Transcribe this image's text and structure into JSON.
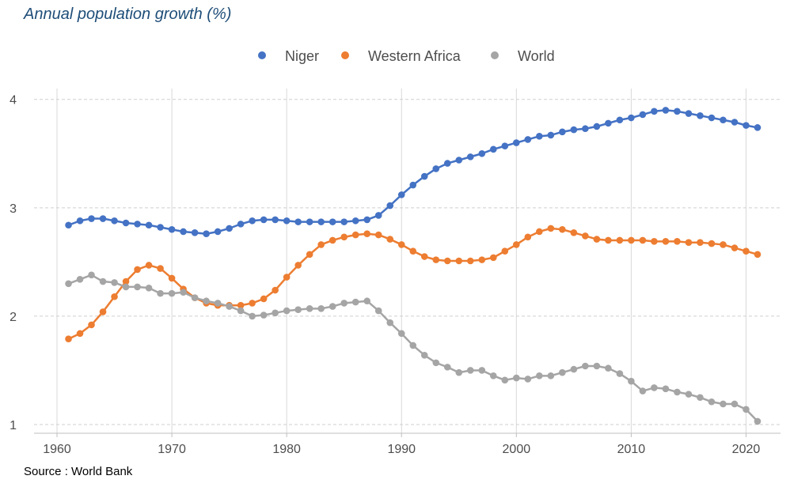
{
  "chart_data": {
    "type": "line",
    "title": "Annual population growth (%)",
    "xlabel": "",
    "ylabel": "",
    "xlim": [
      1958,
      2023
    ],
    "ylim": [
      0.92,
      4.1
    ],
    "x_ticks": [
      1960,
      1970,
      1980,
      1990,
      2000,
      2010,
      2020
    ],
    "y_ticks": [
      1,
      2,
      3,
      4
    ],
    "grid": true,
    "legend_position": "top",
    "x": [
      1961,
      1962,
      1963,
      1964,
      1965,
      1966,
      1967,
      1968,
      1969,
      1970,
      1971,
      1972,
      1973,
      1974,
      1975,
      1976,
      1977,
      1978,
      1979,
      1980,
      1981,
      1982,
      1983,
      1984,
      1985,
      1986,
      1987,
      1988,
      1989,
      1990,
      1991,
      1992,
      1993,
      1994,
      1995,
      1996,
      1997,
      1998,
      1999,
      2000,
      2001,
      2002,
      2003,
      2004,
      2005,
      2006,
      2007,
      2008,
      2009,
      2010,
      2011,
      2012,
      2013,
      2014,
      2015,
      2016,
      2017,
      2018,
      2019,
      2020,
      2021
    ],
    "series": [
      {
        "name": "Niger",
        "color": "#4472c4",
        "values": [
          2.84,
          2.88,
          2.9,
          2.9,
          2.88,
          2.86,
          2.85,
          2.84,
          2.82,
          2.8,
          2.78,
          2.77,
          2.76,
          2.78,
          2.81,
          2.85,
          2.88,
          2.89,
          2.89,
          2.88,
          2.87,
          2.87,
          2.87,
          2.87,
          2.87,
          2.88,
          2.89,
          2.93,
          3.02,
          3.12,
          3.21,
          3.29,
          3.36,
          3.41,
          3.44,
          3.47,
          3.5,
          3.54,
          3.57,
          3.6,
          3.63,
          3.66,
          3.67,
          3.7,
          3.72,
          3.73,
          3.75,
          3.78,
          3.81,
          3.83,
          3.86,
          3.89,
          3.9,
          3.89,
          3.87,
          3.85,
          3.83,
          3.81,
          3.79,
          3.76,
          3.74
        ]
      },
      {
        "name": "Western Africa",
        "color": "#ed7d31",
        "values": [
          1.79,
          1.84,
          1.92,
          2.04,
          2.18,
          2.32,
          2.43,
          2.47,
          2.44,
          2.35,
          2.25,
          2.17,
          2.12,
          2.1,
          2.1,
          2.1,
          2.12,
          2.16,
          2.24,
          2.36,
          2.47,
          2.57,
          2.66,
          2.7,
          2.73,
          2.75,
          2.76,
          2.75,
          2.71,
          2.66,
          2.6,
          2.55,
          2.52,
          2.51,
          2.51,
          2.51,
          2.52,
          2.54,
          2.6,
          2.66,
          2.73,
          2.78,
          2.81,
          2.8,
          2.77,
          2.74,
          2.71,
          2.7,
          2.7,
          2.7,
          2.7,
          2.69,
          2.69,
          2.69,
          2.68,
          2.68,
          2.67,
          2.66,
          2.63,
          2.6,
          2.57
        ]
      },
      {
        "name": "World",
        "color": "#a5a5a5",
        "values": [
          2.3,
          2.34,
          2.38,
          2.32,
          2.31,
          2.27,
          2.27,
          2.26,
          2.21,
          2.21,
          2.22,
          2.17,
          2.14,
          2.12,
          2.09,
          2.05,
          2.0,
          2.01,
          2.03,
          2.05,
          2.06,
          2.07,
          2.07,
          2.09,
          2.12,
          2.13,
          2.14,
          2.05,
          1.94,
          1.84,
          1.73,
          1.64,
          1.57,
          1.53,
          1.48,
          1.5,
          1.5,
          1.45,
          1.41,
          1.43,
          1.42,
          1.45,
          1.45,
          1.48,
          1.51,
          1.54,
          1.54,
          1.52,
          1.47,
          1.4,
          1.31,
          1.34,
          1.33,
          1.3,
          1.28,
          1.25,
          1.21,
          1.19,
          1.19,
          1.14,
          1.03
        ]
      }
    ],
    "source": "Source : World Bank"
  }
}
